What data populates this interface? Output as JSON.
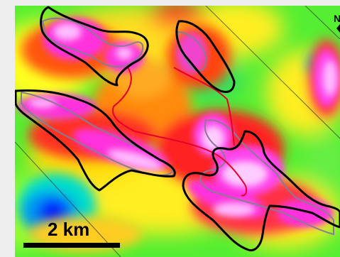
{
  "map": {
    "scale_bar_label": "2 km",
    "north_label": "N",
    "colors": {
      "background_frame": "#eeeeee",
      "anomaly_high": "#ff33ee",
      "anomaly_peak": "#ffccff",
      "mid_high": "#ff1a1a",
      "mid": "#ff8000",
      "mid_low": "#ffff00",
      "low": "#33ff33",
      "lower": "#00e6cc",
      "lowest": "#0033ff",
      "contour_outline": "#000000",
      "contour_inner": "#888888",
      "trace_line": "#e8002a"
    }
  }
}
